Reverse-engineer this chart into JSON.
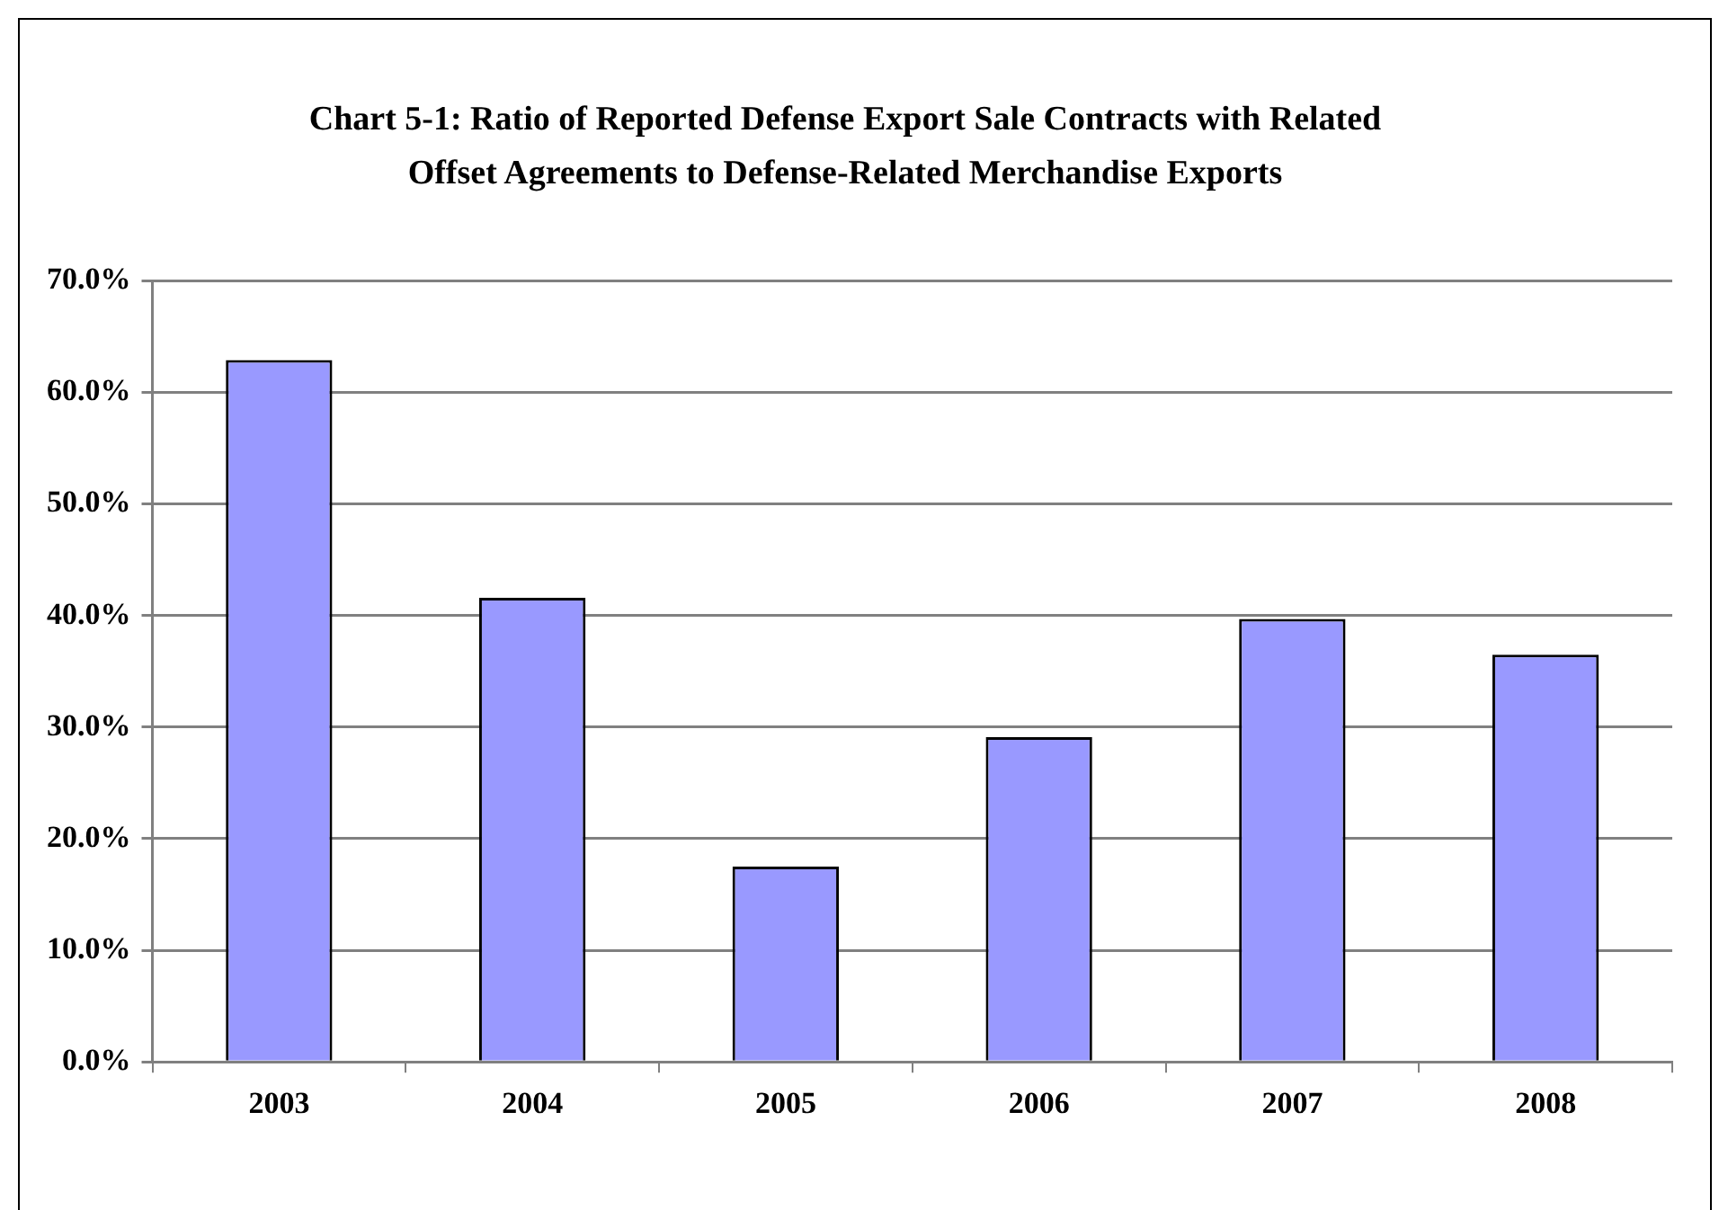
{
  "chart_data": {
    "type": "bar",
    "title": "Chart 5-1: Ratio of Reported Defense Export Sale Contracts with Related Offset Agreements to Defense-Related Merchandise Exports",
    "categories": [
      "2003",
      "2004",
      "2005",
      "2006",
      "2007",
      "2008"
    ],
    "values": [
      62.9,
      41.6,
      17.5,
      29.1,
      39.7,
      36.5
    ],
    "color": "#9999ff",
    "ylim": [
      0,
      70
    ],
    "yticks": [
      {
        "value": 0,
        "label": "0.0%"
      },
      {
        "value": 10,
        "label": "10.0%"
      },
      {
        "value": 20,
        "label": "20.0%"
      },
      {
        "value": 30,
        "label": "30.0%"
      },
      {
        "value": 40,
        "label": "40.0%"
      },
      {
        "value": 50,
        "label": "50.0%"
      },
      {
        "value": 60,
        "label": "60.0%"
      },
      {
        "value": 70,
        "label": "70.0%"
      }
    ],
    "grid": "y",
    "legend": false
  }
}
